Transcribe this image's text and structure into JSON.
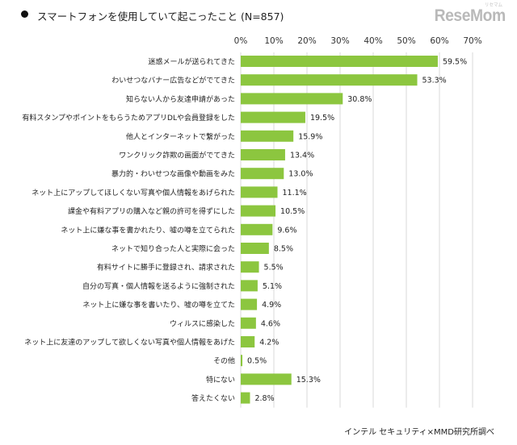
{
  "header": {
    "title": "スマートフォンを使用していて起こったこと (N=857)",
    "logo_text": "ReseMom",
    "logo_mark": "リセマム"
  },
  "source": "インテル セキュリティ×MMD研究所調べ",
  "colors": {
    "bar": "#8cc63f",
    "grid": "#d9d9d9"
  },
  "chart_data": {
    "type": "bar",
    "orientation": "horizontal",
    "title": "スマートフォンを使用していて起こったこと (N=857)",
    "xlabel": "",
    "ylabel": "",
    "xlim": [
      0,
      70
    ],
    "ticks": [
      "0%",
      "10%",
      "20%",
      "30%",
      "40%",
      "50%",
      "60%",
      "70%"
    ],
    "tick_values": [
      0,
      10,
      20,
      30,
      40,
      50,
      60,
      70
    ],
    "grid": true,
    "categories": [
      "迷惑メールが送られてきた",
      "わいせつなバナー広告などがでてきた",
      "知らない人から友達申請があった",
      "有料スタンプやポイントをもらうためアプリDLや会員登録をした",
      "他人とインターネットで繋がった",
      "ワンクリック詐欺の画面がでてきた",
      "暴力的・わいせつな画像や動画をみた",
      "ネット上にアップしてほしくない写真や個人情報をあげられた",
      "課金や有料アプリの購入など親の許可を得ずにした",
      "ネット上に嫌な事を書かれたり、嘘の噂を立てられた",
      "ネットで知り合った人と実際に会った",
      "有料サイトに勝手に登録され、請求された",
      "自分の写真・個人情報を送るように強制された",
      "ネット上に嫌な事を書いたり、嘘の噂を立てた",
      "ウィルスに感染した",
      "ネット上に友達のアップして欲しくない写真や個人情報をあげた",
      "その他",
      "特にない",
      "答えたくない"
    ],
    "values": [
      59.5,
      53.3,
      30.8,
      19.5,
      15.9,
      13.4,
      13.0,
      11.1,
      10.5,
      9.6,
      8.5,
      5.5,
      5.1,
      4.9,
      4.6,
      4.2,
      0.5,
      15.3,
      2.8
    ],
    "value_labels": [
      "59.5%",
      "53.3%",
      "30.8%",
      "19.5%",
      "15.9%",
      "13.4%",
      "13.0%",
      "11.1%",
      "10.5%",
      "9.6%",
      "8.5%",
      "5.5%",
      "5.1%",
      "4.9%",
      "4.6%",
      "4.2%",
      "0.5%",
      "15.3%",
      "2.8%"
    ]
  }
}
